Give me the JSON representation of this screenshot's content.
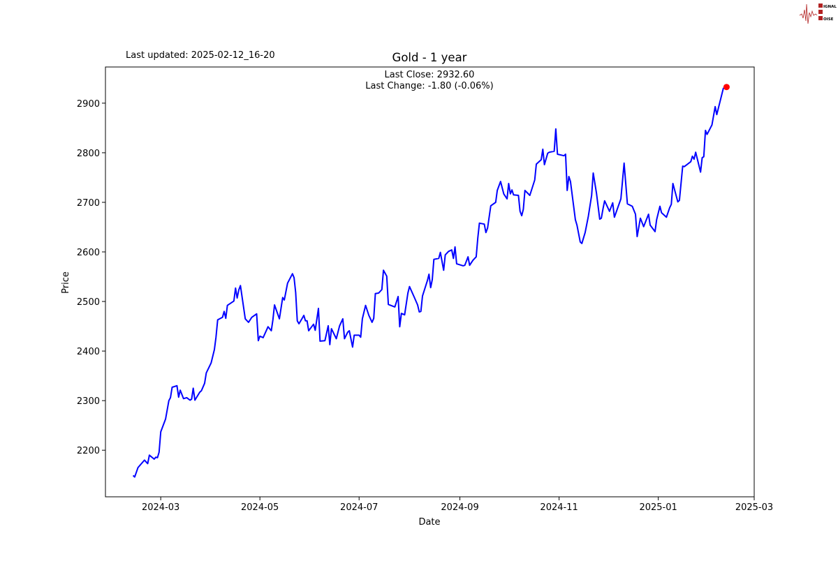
{
  "header": {
    "last_updated": "Last updated: 2025-02-12_16-20",
    "logo_text": "SIGNAL 2 NOISE"
  },
  "chart_data": {
    "type": "line",
    "title": "Gold - 1 year",
    "xlabel": "Date",
    "ylabel": "Price",
    "annotation": {
      "last_close": "Last Close: 2932.60",
      "last_change": "Last Change: -1.80 (-0.06%)"
    },
    "xlim": [
      "2024-01-27",
      "2025-03-01"
    ],
    "ylim": [
      2106,
      2973
    ],
    "x_ticks": [
      "2024-03",
      "2024-05",
      "2024-07",
      "2024-09",
      "2024-11",
      "2025-01",
      "2025-03"
    ],
    "y_ticks": [
      2200,
      2300,
      2400,
      2500,
      2600,
      2700,
      2800,
      2900
    ],
    "grid": false,
    "line_color": "#0000ff",
    "marker_color": "#ff0000",
    "last_point": {
      "date": "2025-02-12",
      "price": 2932.6
    },
    "dates": [
      "2024-02-13",
      "2024-02-14",
      "2024-02-16",
      "2024-02-20",
      "2024-02-22",
      "2024-02-23",
      "2024-02-26",
      "2024-02-27",
      "2024-02-28",
      "2024-02-29",
      "2024-03-01",
      "2024-03-04",
      "2024-03-06",
      "2024-03-07",
      "2024-03-08",
      "2024-03-11",
      "2024-03-12",
      "2024-03-13",
      "2024-03-15",
      "2024-03-17",
      "2024-03-19",
      "2024-03-20",
      "2024-03-21",
      "2024-03-22",
      "2024-03-25",
      "2024-03-26",
      "2024-03-28",
      "2024-03-29",
      "2024-04-01",
      "2024-04-03",
      "2024-04-04",
      "2024-04-05",
      "2024-04-08",
      "2024-04-09",
      "2024-04-10",
      "2024-04-11",
      "2024-04-15",
      "2024-04-16",
      "2024-04-17",
      "2024-04-18",
      "2024-04-19",
      "2024-04-22",
      "2024-04-24",
      "2024-04-26",
      "2024-04-29",
      "2024-04-30",
      "2024-05-01",
      "2024-05-03",
      "2024-05-06",
      "2024-05-08",
      "2024-05-09",
      "2024-05-10",
      "2024-05-13",
      "2024-05-15",
      "2024-05-16",
      "2024-05-18",
      "2024-05-21",
      "2024-05-22",
      "2024-05-23",
      "2024-05-24",
      "2024-05-25",
      "2024-05-27",
      "2024-05-28",
      "2024-05-29",
      "2024-05-30",
      "2024-05-31",
      "2024-06-03",
      "2024-06-04",
      "2024-06-06",
      "2024-06-07",
      "2024-06-10",
      "2024-06-12",
      "2024-06-13",
      "2024-06-14",
      "2024-06-17",
      "2024-06-19",
      "2024-06-21",
      "2024-06-22",
      "2024-06-24",
      "2024-06-25",
      "2024-06-27",
      "2024-06-28",
      "2024-07-01",
      "2024-07-02",
      "2024-07-03",
      "2024-07-05",
      "2024-07-07",
      "2024-07-09",
      "2024-07-10",
      "2024-07-11",
      "2024-07-13",
      "2024-07-15",
      "2024-07-16",
      "2024-07-18",
      "2024-07-19",
      "2024-07-23",
      "2024-07-25",
      "2024-07-26",
      "2024-07-27",
      "2024-07-29",
      "2024-07-31",
      "2024-08-01",
      "2024-08-04",
      "2024-08-06",
      "2024-08-07",
      "2024-08-08",
      "2024-08-09",
      "2024-08-12",
      "2024-08-13",
      "2024-08-14",
      "2024-08-15",
      "2024-08-16",
      "2024-08-19",
      "2024-08-20",
      "2024-08-22",
      "2024-08-23",
      "2024-08-25",
      "2024-08-27",
      "2024-08-28",
      "2024-08-29",
      "2024-08-30",
      "2024-09-03",
      "2024-09-04",
      "2024-09-06",
      "2024-09-07",
      "2024-09-09",
      "2024-09-11",
      "2024-09-12",
      "2024-09-13",
      "2024-09-16",
      "2024-09-17",
      "2024-09-18",
      "2024-09-20",
      "2024-09-23",
      "2024-09-24",
      "2024-09-26",
      "2024-09-28",
      "2024-09-30",
      "2024-10-01",
      "2024-10-02",
      "2024-10-03",
      "2024-10-04",
      "2024-10-07",
      "2024-10-08",
      "2024-10-09",
      "2024-10-10",
      "2024-10-11",
      "2024-10-14",
      "2024-10-17",
      "2024-10-18",
      "2024-10-21",
      "2024-10-22",
      "2024-10-23",
      "2024-10-25",
      "2024-10-26",
      "2024-10-29",
      "2024-10-30",
      "2024-10-31",
      "2024-11-04",
      "2024-11-05",
      "2024-11-06",
      "2024-11-07",
      "2024-11-08",
      "2024-11-11",
      "2024-11-12",
      "2024-11-14",
      "2024-11-15",
      "2024-11-17",
      "2024-11-19",
      "2024-11-21",
      "2024-11-22",
      "2024-11-24",
      "2024-11-26",
      "2024-11-27",
      "2024-11-28",
      "2024-11-29",
      "2024-12-02",
      "2024-12-04",
      "2024-12-05",
      "2024-12-09",
      "2024-12-11",
      "2024-12-13",
      "2024-12-16",
      "2024-12-18",
      "2024-12-19",
      "2024-12-21",
      "2024-12-23",
      "2024-12-26",
      "2024-12-27",
      "2024-12-30",
      "2024-12-31",
      "2025-01-02",
      "2025-01-03",
      "2025-01-06",
      "2025-01-08",
      "2025-01-09",
      "2025-01-10",
      "2025-01-13",
      "2025-01-14",
      "2025-01-16",
      "2025-01-17",
      "2025-01-21",
      "2025-01-22",
      "2025-01-23",
      "2025-01-24",
      "2025-01-27",
      "2025-01-28",
      "2025-01-29",
      "2025-01-30",
      "2025-01-31",
      "2025-02-03",
      "2025-02-05",
      "2025-02-06",
      "2025-02-10",
      "2025-02-12"
    ],
    "prices": [
      2149,
      2146,
      2165,
      2180,
      2173,
      2190,
      2182,
      2186,
      2185,
      2196,
      2237,
      2263,
      2300,
      2306,
      2327,
      2330,
      2307,
      2321,
      2304,
      2306,
      2301,
      2303,
      2325,
      2301,
      2317,
      2320,
      2335,
      2356,
      2376,
      2403,
      2428,
      2463,
      2468,
      2480,
      2466,
      2492,
      2501,
      2527,
      2507,
      2523,
      2532,
      2465,
      2458,
      2468,
      2475,
      2421,
      2430,
      2427,
      2449,
      2441,
      2463,
      2493,
      2465,
      2508,
      2503,
      2537,
      2556,
      2548,
      2518,
      2461,
      2455,
      2466,
      2472,
      2461,
      2461,
      2441,
      2454,
      2442,
      2486,
      2420,
      2421,
      2451,
      2413,
      2445,
      2425,
      2451,
      2465,
      2425,
      2438,
      2441,
      2408,
      2432,
      2432,
      2428,
      2465,
      2492,
      2472,
      2458,
      2466,
      2516,
      2517,
      2524,
      2563,
      2551,
      2494,
      2489,
      2510,
      2449,
      2476,
      2473,
      2517,
      2530,
      2508,
      2493,
      2479,
      2480,
      2511,
      2542,
      2555,
      2528,
      2544,
      2585,
      2587,
      2599,
      2563,
      2594,
      2601,
      2604,
      2587,
      2610,
      2576,
      2572,
      2573,
      2590,
      2573,
      2583,
      2590,
      2628,
      2658,
      2656,
      2639,
      2648,
      2693,
      2700,
      2724,
      2742,
      2717,
      2707,
      2738,
      2717,
      2725,
      2715,
      2714,
      2682,
      2673,
      2686,
      2724,
      2714,
      2745,
      2777,
      2786,
      2807,
      2776,
      2799,
      2801,
      2803,
      2848,
      2797,
      2794,
      2797,
      2724,
      2752,
      2742,
      2665,
      2654,
      2620,
      2617,
      2639,
      2672,
      2714,
      2759,
      2718,
      2666,
      2668,
      2687,
      2703,
      2682,
      2699,
      2670,
      2707,
      2779,
      2697,
      2692,
      2676,
      2631,
      2668,
      2651,
      2676,
      2654,
      2641,
      2665,
      2692,
      2679,
      2670,
      2689,
      2696,
      2738,
      2701,
      2704,
      2773,
      2772,
      2782,
      2793,
      2787,
      2801,
      2761,
      2790,
      2792,
      2845,
      2837,
      2856,
      2893,
      2877,
      2930,
      2932.6
    ]
  }
}
